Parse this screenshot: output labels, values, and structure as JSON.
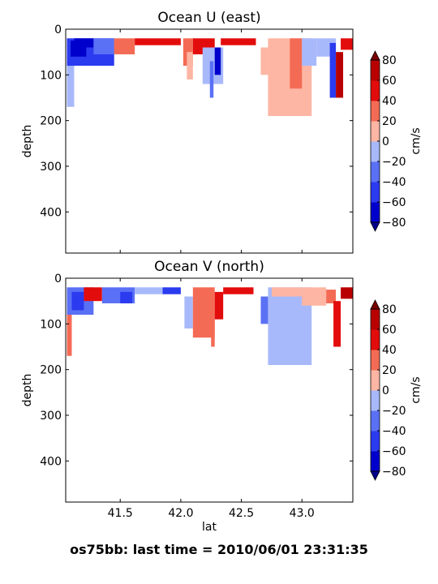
{
  "suptitle": "os75bb: last time = 2010/06/01 23:31:35",
  "colors": {
    "levels": [
      -80,
      -60,
      -40,
      -20,
      0,
      20,
      40,
      60,
      80
    ],
    "fills": [
      "#0000cc",
      "#2b3bef",
      "#5a71f5",
      "#a8b9fb",
      "#fdb6a3",
      "#f46b55",
      "#e30c0c",
      "#b80000"
    ],
    "under": "#00008b",
    "over": "#7a0000",
    "mask": "#ffffff"
  },
  "chart_data": [
    {
      "type": "heatmap",
      "title": "Ocean U (east)",
      "xlabel": "",
      "ylabel": "depth",
      "xlim": [
        41.05,
        43.42
      ],
      "ylim": [
        490,
        0
      ],
      "x_ticks": [
        "41.5",
        "42.0",
        "42.5",
        "43.0"
      ],
      "x_tick_values": [
        41.5,
        42.0,
        42.5,
        43.0
      ],
      "show_x_tick_labels": false,
      "y_ticks": [
        "0",
        "100",
        "200",
        "300",
        "400"
      ],
      "y_tick_values": [
        0,
        100,
        200,
        300,
        400
      ],
      "colorbar": {
        "label": "cm/s",
        "ticks": [
          "80",
          "60",
          "40",
          "20",
          "0",
          "−20",
          "−40",
          "−60",
          "−80"
        ],
        "tick_values": [
          80,
          60,
          40,
          20,
          0,
          -20,
          -40,
          -60,
          -80
        ]
      },
      "regions": [
        {
          "lat": [
            41.06,
            41.12
          ],
          "depth": [
            70,
            170
          ],
          "value": -10
        },
        {
          "lat": [
            41.06,
            41.45
          ],
          "depth": [
            20,
            80
          ],
          "value": -45
        },
        {
          "lat": [
            41.09,
            41.22
          ],
          "depth": [
            25,
            60
          ],
          "value": -65
        },
        {
          "lat": [
            41.12,
            41.28
          ],
          "depth": [
            20,
            40
          ],
          "value": -75
        },
        {
          "lat": [
            41.28,
            41.45
          ],
          "depth": [
            20,
            55
          ],
          "value": -25
        },
        {
          "lat": [
            41.45,
            41.62
          ],
          "depth": [
            20,
            55
          ],
          "value": 30
        },
        {
          "lat": [
            41.62,
            42.0
          ],
          "depth": [
            20,
            35
          ],
          "value": 50
        },
        {
          "lat": [
            42.02,
            42.1
          ],
          "depth": [
            20,
            80
          ],
          "value": 30
        },
        {
          "lat": [
            42.05,
            42.1
          ],
          "depth": [
            50,
            110
          ],
          "value": 10
        },
        {
          "lat": [
            42.1,
            42.28
          ],
          "depth": [
            20,
            55
          ],
          "value": 50
        },
        {
          "lat": [
            42.18,
            42.35
          ],
          "depth": [
            40,
            120
          ],
          "value": -10
        },
        {
          "lat": [
            42.24,
            42.27
          ],
          "depth": [
            70,
            150
          ],
          "value": -40
        },
        {
          "lat": [
            42.28,
            42.33
          ],
          "depth": [
            40,
            100
          ],
          "value": -75
        },
        {
          "lat": [
            42.33,
            42.62
          ],
          "depth": [
            20,
            35
          ],
          "value": 40
        },
        {
          "lat": [
            42.66,
            42.72
          ],
          "depth": [
            40,
            100
          ],
          "value": 15
        },
        {
          "lat": [
            42.72,
            43.08
          ],
          "depth": [
            20,
            190
          ],
          "value": 15
        },
        {
          "lat": [
            42.9,
            43.0
          ],
          "depth": [
            20,
            130
          ],
          "value": 30
        },
        {
          "lat": [
            43.0,
            43.12
          ],
          "depth": [
            20,
            80
          ],
          "value": -12
        },
        {
          "lat": [
            43.12,
            43.28
          ],
          "depth": [
            20,
            60
          ],
          "value": -20
        },
        {
          "lat": [
            43.23,
            43.28
          ],
          "depth": [
            30,
            150
          ],
          "value": -55
        },
        {
          "lat": [
            43.28,
            43.34
          ],
          "depth": [
            50,
            150
          ],
          "value": 70
        },
        {
          "lat": [
            43.32,
            43.42
          ],
          "depth": [
            20,
            45
          ],
          "value": 50
        }
      ]
    },
    {
      "type": "heatmap",
      "title": "Ocean V (north)",
      "xlabel": "lat",
      "ylabel": "depth",
      "xlim": [
        41.05,
        43.42
      ],
      "ylim": [
        490,
        0
      ],
      "x_ticks": [
        "41.5",
        "42.0",
        "42.5",
        "43.0"
      ],
      "x_tick_values": [
        41.5,
        42.0,
        42.5,
        43.0
      ],
      "show_x_tick_labels": true,
      "y_ticks": [
        "0",
        "100",
        "200",
        "300",
        "400"
      ],
      "y_tick_values": [
        0,
        100,
        200,
        300,
        400
      ],
      "colorbar": {
        "label": "cm/s",
        "ticks": [
          "80",
          "60",
          "40",
          "20",
          "0",
          "−20",
          "−40",
          "−60",
          "−80"
        ],
        "tick_values": [
          80,
          60,
          40,
          20,
          0,
          -20,
          -40,
          -60,
          -80
        ]
      },
      "regions": [
        {
          "lat": [
            41.06,
            41.1
          ],
          "depth": [
            70,
            170
          ],
          "value": 30
        },
        {
          "lat": [
            41.06,
            41.28
          ],
          "depth": [
            20,
            80
          ],
          "value": -25
        },
        {
          "lat": [
            41.1,
            41.2
          ],
          "depth": [
            30,
            70
          ],
          "value": -45
        },
        {
          "lat": [
            41.2,
            41.35
          ],
          "depth": [
            20,
            50
          ],
          "value": 40
        },
        {
          "lat": [
            41.35,
            41.62
          ],
          "depth": [
            20,
            55
          ],
          "value": -30
        },
        {
          "lat": [
            41.5,
            41.6
          ],
          "depth": [
            30,
            55
          ],
          "value": -55
        },
        {
          "lat": [
            41.62,
            41.85
          ],
          "depth": [
            20,
            35
          ],
          "value": -20
        },
        {
          "lat": [
            41.85,
            42.0
          ],
          "depth": [
            20,
            35
          ],
          "value": -50
        },
        {
          "lat": [
            42.03,
            42.1
          ],
          "depth": [
            40,
            110
          ],
          "value": -15
        },
        {
          "lat": [
            42.1,
            42.28
          ],
          "depth": [
            20,
            130
          ],
          "value": 35
        },
        {
          "lat": [
            42.25,
            42.28
          ],
          "depth": [
            90,
            150
          ],
          "value": 20
        },
        {
          "lat": [
            42.28,
            42.35
          ],
          "depth": [
            30,
            90
          ],
          "value": 40
        },
        {
          "lat": [
            42.35,
            42.6
          ],
          "depth": [
            20,
            35
          ],
          "value": 40
        },
        {
          "lat": [
            42.66,
            42.72
          ],
          "depth": [
            40,
            100
          ],
          "value": -35
        },
        {
          "lat": [
            42.72,
            43.08
          ],
          "depth": [
            20,
            190
          ],
          "value": -12
        },
        {
          "lat": [
            42.75,
            43.0
          ],
          "depth": [
            20,
            40
          ],
          "value": 15
        },
        {
          "lat": [
            43.0,
            43.2
          ],
          "depth": [
            20,
            60
          ],
          "value": 15
        },
        {
          "lat": [
            43.2,
            43.28
          ],
          "depth": [
            25,
            55
          ],
          "value": 30
        },
        {
          "lat": [
            43.26,
            43.32
          ],
          "depth": [
            50,
            150
          ],
          "value": 50
        },
        {
          "lat": [
            43.32,
            43.42
          ],
          "depth": [
            20,
            45
          ],
          "value": 65
        }
      ]
    }
  ]
}
